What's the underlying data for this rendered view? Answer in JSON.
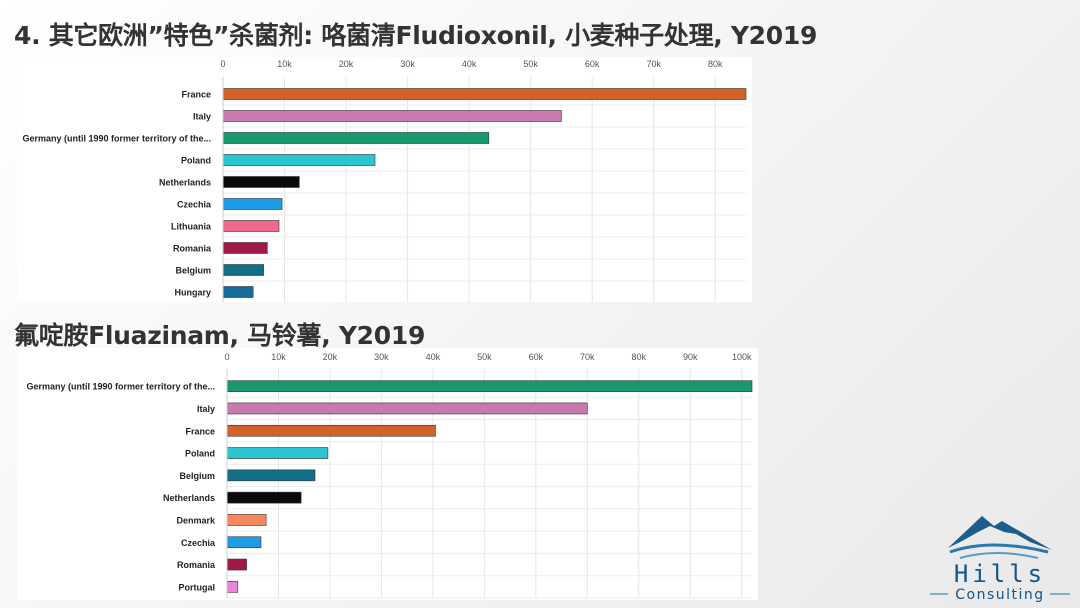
{
  "titles": {
    "top": "4. 其它欧洲”特色”杀菌剂: 咯菌清Fludioxonil, 小麦种子处理, Y2019",
    "bottom": "氟啶胺Fluazinam, 马铃薯, Y2019"
  },
  "logo": {
    "line1": "Hills",
    "line2": "Consulting",
    "colors": {
      "mountain": "#1d5d8c",
      "text": "#12558a",
      "line": "#5a9bc4"
    }
  },
  "chart_data": [
    {
      "type": "bar",
      "orientation": "horizontal",
      "categories": [
        "France",
        "Italy",
        "Germany (until 1990 former territory of the...",
        "Poland",
        "Netherlands",
        "Czechia",
        "Lithuania",
        "Romania",
        "Belgium",
        "Hungary"
      ],
      "values": [
        85000,
        55000,
        43200,
        24700,
        12400,
        9600,
        9100,
        7200,
        6600,
        4900
      ],
      "colors": [
        "#d2622a",
        "#c77aab",
        "#17996b",
        "#2bc5d2",
        "#0a0a0a",
        "#1f9ce8",
        "#ee6a8d",
        "#a01848",
        "#136f87",
        "#176c98"
      ],
      "x_ticks": [
        0,
        10000,
        20000,
        30000,
        40000,
        50000,
        60000,
        70000,
        80000
      ],
      "x_tick_labels": [
        "0",
        "10k",
        "20k",
        "30k",
        "40k",
        "50k",
        "60k",
        "70k",
        "80k"
      ],
      "xlim": [
        0,
        85000
      ],
      "grid": true
    },
    {
      "type": "bar",
      "orientation": "horizontal",
      "categories": [
        "Germany (until 1990 former territory of the...",
        "Italy",
        "France",
        "Poland",
        "Belgium",
        "Netherlands",
        "Denmark",
        "Czechia",
        "Romania",
        "Portugal"
      ],
      "values": [
        102000,
        70000,
        40500,
        19600,
        17100,
        14400,
        7600,
        6600,
        3800,
        2100
      ],
      "colors": [
        "#17996b",
        "#c77aab",
        "#d2622a",
        "#2bc5d2",
        "#136f87",
        "#0a0a0a",
        "#f7875f",
        "#1f9ce8",
        "#a01848",
        "#e985e0"
      ],
      "x_ticks": [
        0,
        10000,
        20000,
        30000,
        40000,
        50000,
        60000,
        70000,
        80000,
        90000,
        100000
      ],
      "x_tick_labels": [
        "0",
        "10k",
        "20k",
        "30k",
        "40k",
        "50k",
        "60k",
        "70k",
        "80k",
        "90k",
        "100k"
      ],
      "xlim": [
        0,
        102000
      ],
      "grid": true
    }
  ]
}
